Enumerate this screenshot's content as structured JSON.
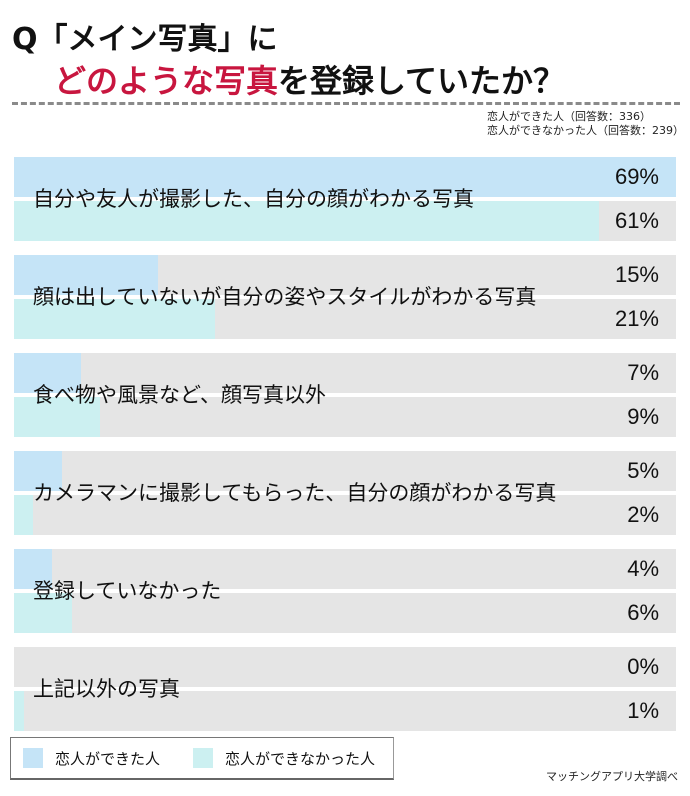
{
  "title": {
    "line1": "Q「メイン写真」に",
    "line2_highlight": "どのような写真",
    "line2_rest": "を登録していたか？",
    "highlight_color": "#c8163f"
  },
  "respondents": {
    "group_a": "恋人ができた人（回答数：336）",
    "group_b": "恋人ができなかった人（回答数：239）"
  },
  "legend": {
    "items": [
      {
        "label": "恋人ができた人",
        "color": "#c5e4f7"
      },
      {
        "label": "恋人ができなかった人",
        "color": "#ccf0f1"
      }
    ]
  },
  "source": "マッチングアプリ大学調べ",
  "colors": {
    "group_a": "#c5e4f7",
    "group_b": "#ccf0f1",
    "track": "#e5e5e5"
  },
  "chart_data": {
    "type": "bar",
    "orientation": "horizontal",
    "title": "Q「メイン写真」にどのような写真を登録していたか？",
    "xlabel": "",
    "ylabel": "",
    "xlim": [
      0,
      69
    ],
    "grid": false,
    "legend_position": "bottom-left",
    "categories": [
      "自分や友人が撮影した、自分の顔がわかる写真",
      "顔は出していないが自分の姿やスタイルがわかる写真",
      "食べ物や風景など、顔写真以外",
      "カメラマンに撮影してもらった、自分の顔がわかる写真",
      "登録していなかった",
      "上記以外の写真"
    ],
    "series": [
      {
        "name": "恋人ができた人",
        "values": [
          69,
          15,
          7,
          5,
          4,
          0
        ],
        "labels": [
          "69%",
          "15%",
          "7%",
          "5%",
          "4%",
          "0%"
        ]
      },
      {
        "name": "恋人ができなかった人",
        "values": [
          61,
          21,
          9,
          2,
          6,
          1
        ],
        "labels": [
          "61%",
          "21%",
          "9%",
          "2%",
          "6%",
          "1%"
        ]
      }
    ]
  }
}
